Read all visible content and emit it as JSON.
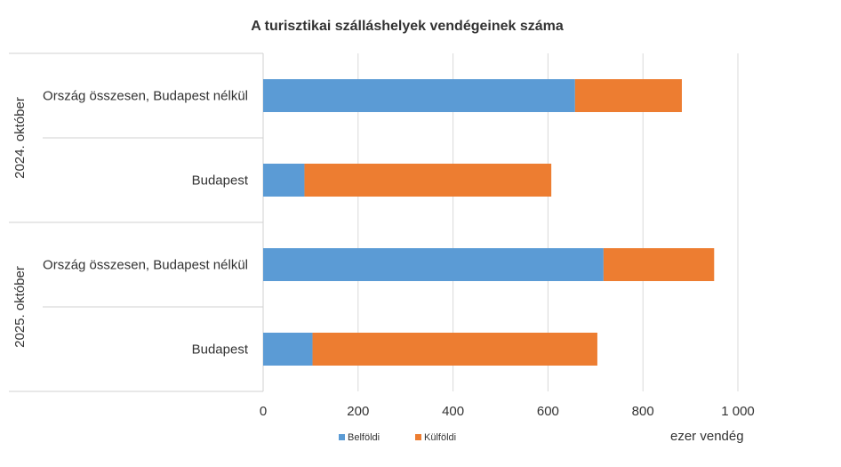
{
  "chart_data": {
    "type": "bar",
    "orientation": "horizontal",
    "stacked": true,
    "title": "A turisztikai szálláshelyek vendégeinek száma",
    "xlabel": "ezer vendég",
    "xlim": [
      0,
      1000
    ],
    "xticks": [
      "0",
      "200",
      "400",
      "600",
      "800",
      "1 000"
    ],
    "grid": true,
    "legend_position": "bottom",
    "groups": [
      {
        "label": "2024. október",
        "categories": [
          "Ország összesen, Budapest nélkül",
          "Budapest"
        ]
      },
      {
        "label": "2025. október",
        "categories": [
          "Ország összesen, Budapest nélkül",
          "Budapest"
        ]
      }
    ],
    "series": [
      {
        "name": "Belföldi",
        "color": "#5b9bd5",
        "values": [
          657,
          87,
          717,
          104
        ]
      },
      {
        "name": "Külföldi",
        "color": "#ed7d31",
        "values": [
          225,
          520,
          233,
          600
        ]
      }
    ]
  }
}
